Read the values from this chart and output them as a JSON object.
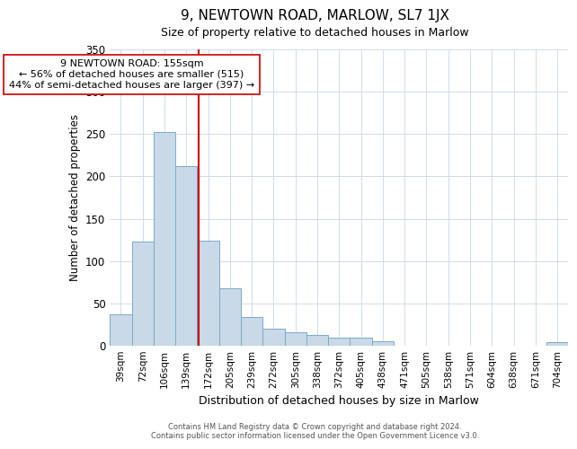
{
  "title": "9, NEWTOWN ROAD, MARLOW, SL7 1JX",
  "subtitle": "Size of property relative to detached houses in Marlow",
  "xlabel": "Distribution of detached houses by size in Marlow",
  "ylabel": "Number of detached properties",
  "bar_labels": [
    "39sqm",
    "72sqm",
    "106sqm",
    "139sqm",
    "172sqm",
    "205sqm",
    "239sqm",
    "272sqm",
    "305sqm",
    "338sqm",
    "372sqm",
    "405sqm",
    "438sqm",
    "471sqm",
    "505sqm",
    "538sqm",
    "571sqm",
    "604sqm",
    "638sqm",
    "671sqm",
    "704sqm"
  ],
  "bar_values": [
    37,
    123,
    252,
    212,
    124,
    68,
    34,
    20,
    16,
    13,
    10,
    10,
    5,
    0,
    0,
    0,
    0,
    0,
    0,
    0,
    4
  ],
  "bar_color": "#c9d9e8",
  "bar_edgecolor": "#7aaac8",
  "vline_x": 3.545,
  "vline_color": "#cc0000",
  "annotation_line1": "9 NEWTOWN ROAD: 155sqm",
  "annotation_line2": "← 56% of detached houses are smaller (515)",
  "annotation_line3": "44% of semi-detached houses are larger (397) →",
  "annotation_box_edgecolor": "#cc0000",
  "ylim": [
    0,
    350
  ],
  "yticks": [
    0,
    50,
    100,
    150,
    200,
    250,
    300,
    350
  ],
  "footer1": "Contains HM Land Registry data © Crown copyright and database right 2024.",
  "footer2": "Contains public sector information licensed under the Open Government Licence v3.0.",
  "bg_color": "#ffffff",
  "grid_color": "#d0dce8"
}
